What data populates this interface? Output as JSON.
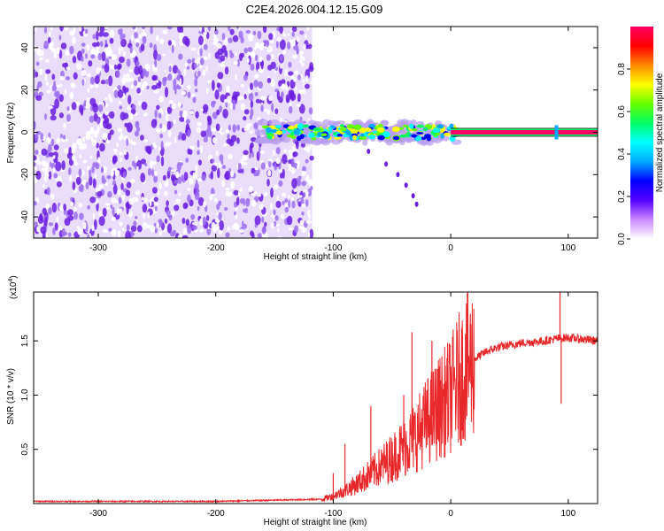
{
  "title": "C2E4.2026.004.12.15.G09",
  "colors": {
    "noise": "#6a1fe0",
    "noise_light": "#b89cf0",
    "snr_line": "#e8282a",
    "baseline": "#d42a2a",
    "frame": "#000000"
  },
  "chart_data": [
    {
      "type": "heatmap",
      "name": "spectrogram",
      "xlabel": "Height of straight line (km)",
      "ylabel": "Frequency (Hz)",
      "xlim": [
        -355,
        125
      ],
      "ylim": [
        -50,
        50
      ],
      "xticks": [
        -300,
        -200,
        -100,
        0,
        100
      ],
      "xtick_labels": [
        "-300",
        "-200",
        "-100",
        "0",
        "100"
      ],
      "yticks": [
        -40,
        -20,
        0,
        20,
        40
      ],
      "ytick_labels": [
        "-40",
        "-20",
        "0",
        "20",
        "40"
      ],
      "noise_region_x": [
        -355,
        -118
      ],
      "signal_band_x": [
        -165,
        5
      ],
      "signal_band_halfwidth_hz": 3,
      "carrier_x": [
        0,
        125
      ],
      "carrier_freq_hz": 0,
      "chirp_points": [
        [
          -70,
          -9
        ],
        [
          -55,
          -15
        ],
        [
          -45,
          -20
        ],
        [
          -38,
          -25
        ],
        [
          -32,
          -30
        ],
        [
          -29,
          -34
        ]
      ],
      "colorbar": {
        "label": "Normalized spectral amplitude",
        "range": [
          0,
          1
        ],
        "ticks": [
          0.0,
          0.2,
          0.4,
          0.6,
          0.8
        ],
        "tick_labels": [
          "0.0",
          "0.2",
          "0.4",
          "0.6",
          "0.8"
        ],
        "colors": [
          "#ffffff",
          "#cc88ff",
          "#5500ff",
          "#0000ff",
          "#00aaff",
          "#00ffff",
          "#00ff66",
          "#66ff00",
          "#ffff00",
          "#ff8800",
          "#ff0000",
          "#ff0066"
        ]
      }
    },
    {
      "type": "line",
      "name": "snr",
      "xlabel": "Height of straight line (km)",
      "ylabel": "SNR (10 * v/v)",
      "scale_label": "(x10",
      "scale_exponent": "4",
      "scale_close": ")",
      "xlim": [
        -355,
        125
      ],
      "ylim": [
        0,
        1.95
      ],
      "xticks": [
        -300,
        -200,
        -100,
        0,
        100
      ],
      "xtick_labels": [
        "-300",
        "-200",
        "-100",
        "0",
        "100"
      ],
      "yticks": [
        0.5,
        1.0,
        1.5
      ],
      "ytick_labels": [
        "0.5",
        "1.0",
        "1.5"
      ],
      "series": [
        {
          "name": "SNR",
          "envelope": [
            [
              -355,
              0.02
            ],
            [
              -200,
              0.02
            ],
            [
              -110,
              0.04
            ],
            [
              -100,
              0.07
            ],
            [
              -90,
              0.12
            ],
            [
              -80,
              0.18
            ],
            [
              -70,
              0.26
            ],
            [
              -60,
              0.34
            ],
            [
              -50,
              0.42
            ],
            [
              -40,
              0.52
            ],
            [
              -30,
              0.62
            ],
            [
              -20,
              0.76
            ],
            [
              -10,
              0.88
            ],
            [
              0,
              1.0
            ],
            [
              10,
              1.2
            ],
            [
              20,
              1.33
            ],
            [
              30,
              1.4
            ],
            [
              40,
              1.44
            ],
            [
              60,
              1.48
            ],
            [
              80,
              1.5
            ],
            [
              90,
              1.52
            ],
            [
              100,
              1.53
            ],
            [
              125,
              1.5
            ]
          ],
          "spikes": [
            [
              -100,
              0.28
            ],
            [
              -90,
              0.55
            ],
            [
              -68,
              0.9
            ],
            [
              -40,
              1.0
            ],
            [
              -33,
              1.58
            ],
            [
              -16,
              1.5
            ],
            [
              93,
              1.95
            ],
            [
              94,
              0.92
            ]
          ]
        }
      ]
    }
  ]
}
